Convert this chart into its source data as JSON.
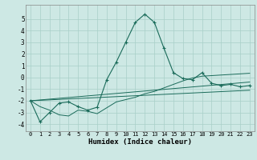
{
  "xlabel": "Humidex (Indice chaleur)",
  "bg_color": "#cde8e4",
  "line_color": "#1a6b5a",
  "grid_color": "#a8cfc8",
  "xlim": [
    -0.5,
    23.5
  ],
  "ylim": [
    -4.6,
    6.2
  ],
  "yticks": [
    -4,
    -3,
    -2,
    -1,
    0,
    1,
    2,
    3,
    4,
    5
  ],
  "xticks": [
    0,
    1,
    2,
    3,
    4,
    5,
    6,
    7,
    8,
    9,
    10,
    11,
    12,
    13,
    14,
    15,
    16,
    17,
    18,
    19,
    20,
    21,
    22,
    23
  ],
  "main_x": [
    0,
    1,
    2,
    3,
    4,
    5,
    6,
    7,
    8,
    9,
    10,
    11,
    12,
    13,
    14,
    15,
    16,
    17,
    18,
    19,
    20,
    21,
    22,
    23
  ],
  "main_y": [
    -2.0,
    -3.8,
    -3.0,
    -2.2,
    -2.1,
    -2.5,
    -2.8,
    -2.55,
    -0.2,
    1.3,
    3.0,
    4.7,
    5.4,
    4.7,
    2.5,
    0.4,
    -0.1,
    -0.2,
    0.4,
    -0.5,
    -0.7,
    -0.6,
    -0.8,
    -0.7
  ],
  "line2_x": [
    0,
    1,
    2,
    3,
    4,
    5,
    6,
    7,
    8,
    9,
    10,
    11,
    12,
    13,
    14,
    15,
    16,
    17,
    18,
    19,
    20,
    21,
    22,
    23
  ],
  "line2_y": [
    -2.0,
    -2.5,
    -2.8,
    -3.2,
    -3.3,
    -2.8,
    -2.9,
    -3.1,
    -2.6,
    -2.1,
    -1.9,
    -1.7,
    -1.4,
    -1.2,
    -0.9,
    -0.6,
    -0.3,
    -0.05,
    0.1,
    0.15,
    0.2,
    0.25,
    0.3,
    0.35
  ],
  "line3_x": [
    0,
    23
  ],
  "line3_y": [
    -2.0,
    -0.4
  ],
  "line4_x": [
    0,
    23
  ],
  "line4_y": [
    -2.0,
    -1.1
  ]
}
